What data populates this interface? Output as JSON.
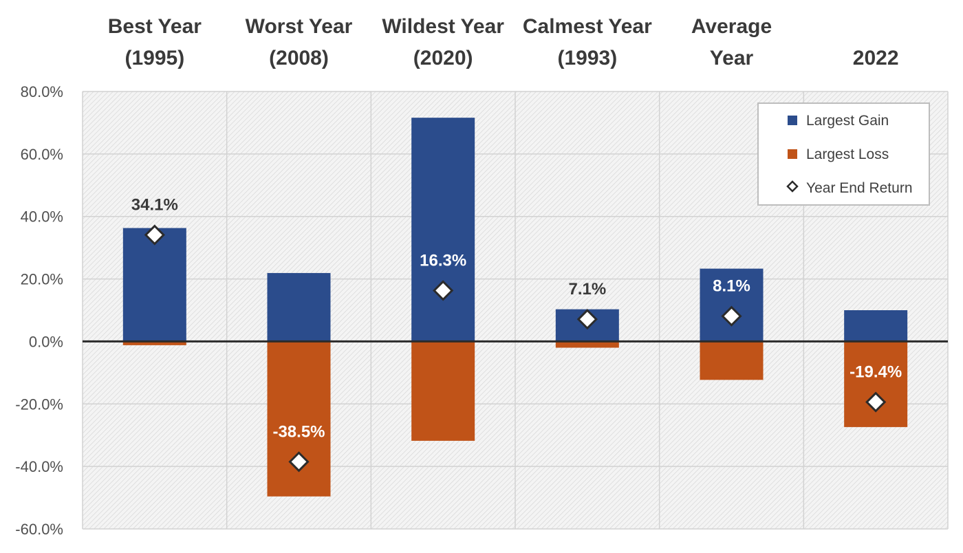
{
  "chart_data": {
    "type": "bar",
    "categories": [
      [
        "Best Year",
        "(1995)"
      ],
      [
        "Worst Year",
        "(2008)"
      ],
      [
        "Wildest Year",
        "(2020)"
      ],
      [
        "Calmest Year",
        "(1993)"
      ],
      [
        "Average",
        "Year"
      ],
      [
        "",
        "2022"
      ]
    ],
    "series": [
      {
        "name": "Largest Gain",
        "values": [
          36.3,
          21.9,
          71.6,
          10.3,
          23.3,
          10.0
        ],
        "color": "#2b4c8c"
      },
      {
        "name": "Largest Loss",
        "values": [
          -1.2,
          -49.6,
          -31.8,
          -2.0,
          -12.3,
          -27.4
        ],
        "color": "#c05318"
      }
    ],
    "markers": {
      "name": "Year End Return",
      "values": [
        34.1,
        -38.5,
        16.3,
        7.1,
        8.1,
        -19.4
      ],
      "labels": [
        "34.1%",
        "-38.5%",
        "16.3%",
        "7.1%",
        "8.1%",
        "-19.4%"
      ],
      "label_colors": [
        "#3a3a3a",
        "#ffffff",
        "#ffffff",
        "#3a3a3a",
        "#ffffff",
        "#ffffff"
      ]
    },
    "ylim": [
      -60,
      80
    ],
    "yticks": [
      80,
      60,
      40,
      20,
      0,
      -20,
      -40,
      -60
    ],
    "ytick_labels": [
      "80.0%",
      "60.0%",
      "40.0%",
      "20.0%",
      "0.0%",
      "-20.0%",
      "-40.0%",
      "-60.0%"
    ],
    "grid": true,
    "legend_position": "top-right",
    "title": "",
    "xlabel": "",
    "ylabel": ""
  }
}
